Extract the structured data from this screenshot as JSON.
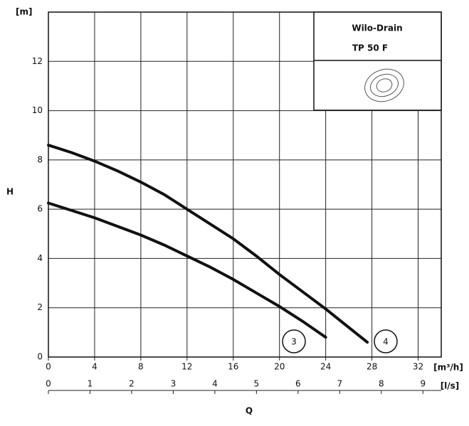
{
  "chart_data": {
    "type": "line",
    "ylabel": "H",
    "ylabel_unit": "[m]",
    "xlabel": "Q",
    "xlabel_unit": "[m³/h]",
    "x2label_unit": "[l/s]",
    "legend_title_1": "Wilo-Drain",
    "legend_title_2": "TP 50 F",
    "xlim": [
      0,
      34
    ],
    "xticks": [
      0,
      4,
      8,
      12,
      16,
      20,
      24,
      28,
      32
    ],
    "x2lim": [
      0,
      9.44
    ],
    "x2ticks": [
      0,
      1,
      2,
      3,
      4,
      5,
      6,
      7,
      8,
      9
    ],
    "ylim": [
      0,
      14
    ],
    "yticks": [
      0,
      2,
      4,
      6,
      8,
      10,
      12
    ],
    "grid": true,
    "series": [
      {
        "name": "3",
        "color": "#111111",
        "x": [
          0,
          2,
          4,
          6,
          8,
          10,
          12,
          14,
          16,
          18,
          20,
          22,
          24
        ],
        "values": [
          6.25,
          5.95,
          5.65,
          5.3,
          4.95,
          4.55,
          4.1,
          3.65,
          3.15,
          2.6,
          2.05,
          1.45,
          0.8
        ]
      },
      {
        "name": "4",
        "color": "#111111",
        "x": [
          0,
          2,
          4,
          6,
          8,
          10,
          12,
          14,
          16,
          18,
          20,
          22,
          24,
          26,
          27.6
        ],
        "values": [
          8.6,
          8.3,
          7.95,
          7.55,
          7.1,
          6.6,
          6.0,
          5.4,
          4.8,
          4.1,
          3.35,
          2.65,
          1.95,
          1.2,
          0.6
        ]
      }
    ]
  }
}
